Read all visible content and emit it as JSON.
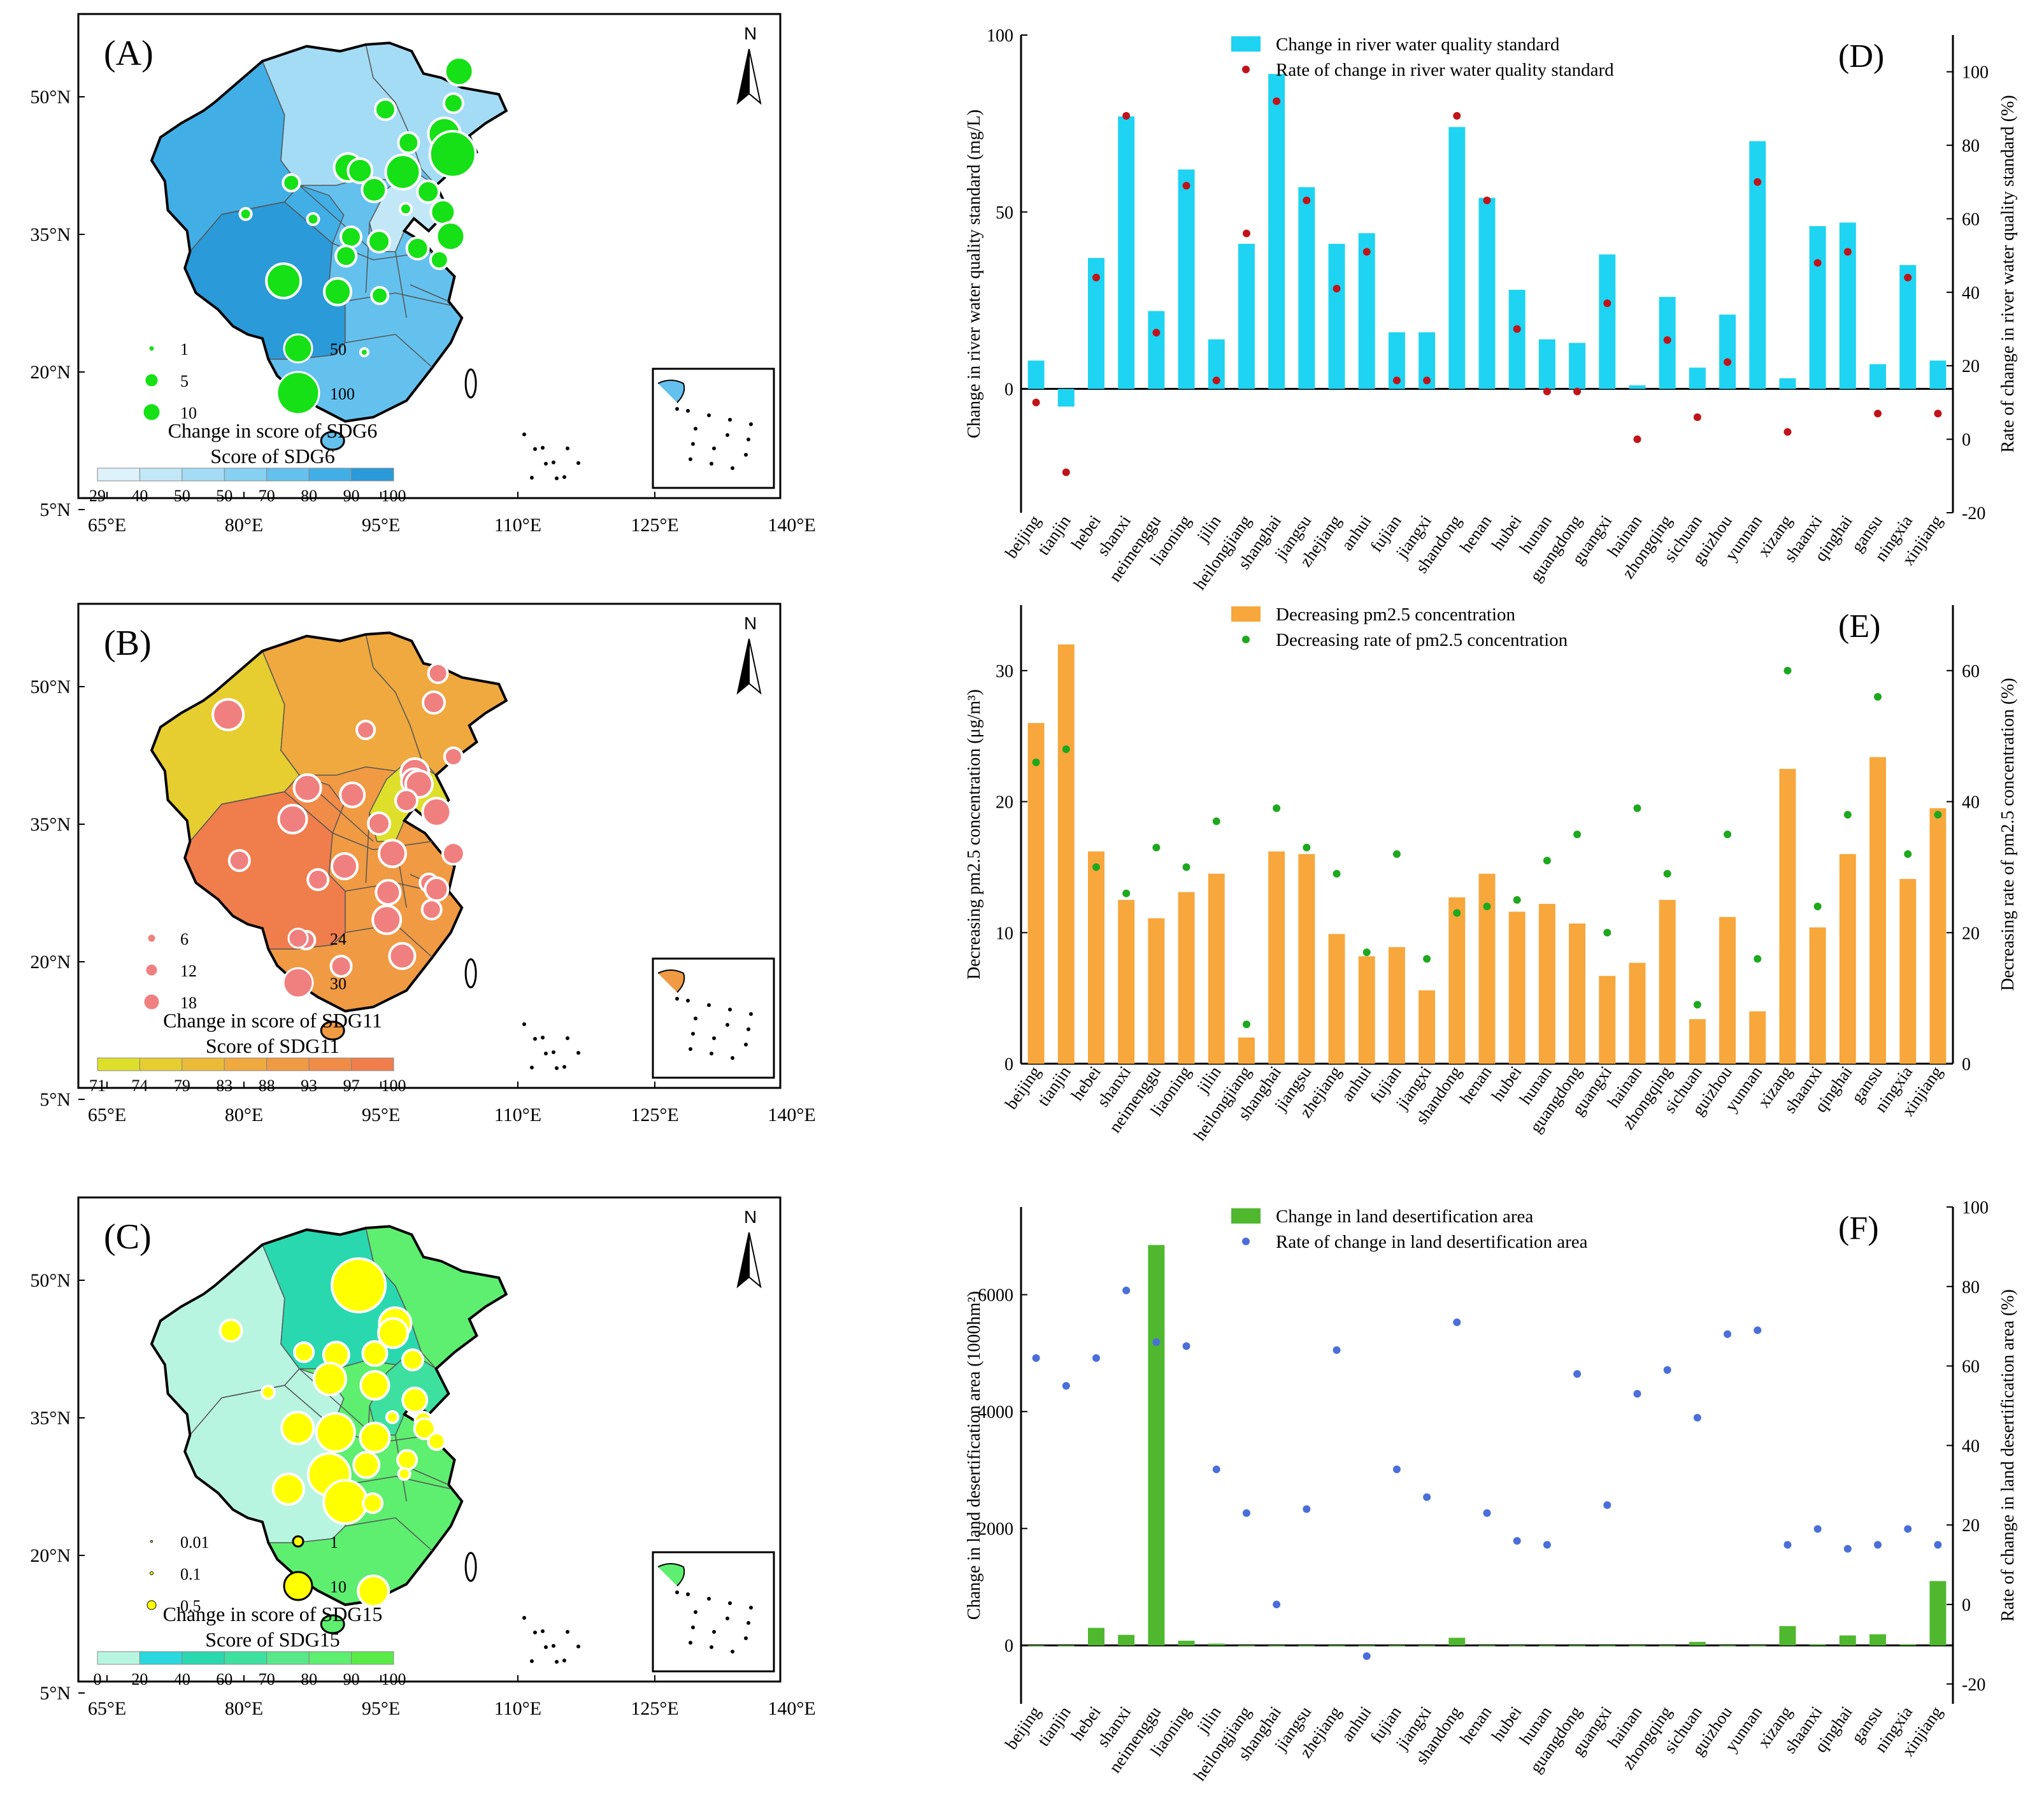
{
  "panel_a": {
    "label": "(A)",
    "north": "N",
    "lat_labels": [
      "50°N",
      "35°N",
      "20°N",
      "5°N"
    ],
    "lon_labels": [
      "65°E",
      "80°E",
      "95°E",
      "110°E",
      "125°E",
      "140°E"
    ],
    "bubble_legend": [
      "1",
      "5",
      "10",
      "50",
      "100"
    ],
    "legend_title": "Change in score of SDG6",
    "colorbar_title": "Score of SDG6",
    "colorbar_labels": [
      "29",
      "40",
      "50",
      "50",
      "70",
      "80",
      "90",
      "100"
    ],
    "colors": [
      "#ddf2fb",
      "#c2e8f8",
      "#a4dcf5",
      "#86d0f2",
      "#64c1ee",
      "#41afe6",
      "#2a9ad8"
    ],
    "bubble_color": "#16e016"
  },
  "panel_b": {
    "label": "(B)",
    "north": "N",
    "lat_labels": [
      "50°N",
      "35°N",
      "20°N",
      "5°N"
    ],
    "lon_labels": [
      "65°E",
      "80°E",
      "95°E",
      "110°E",
      "125°E",
      "140°E"
    ],
    "bubble_legend": [
      "6",
      "12",
      "18",
      "24",
      "30"
    ],
    "legend_title": "Change in score of SDG11",
    "colorbar_title": "Score of SDG11",
    "colorbar_labels": [
      "71",
      "74",
      "79",
      "83",
      "88",
      "93",
      "97",
      "100"
    ],
    "colors": [
      "#dedf2a",
      "#e6cd30",
      "#ebbb38",
      "#efa93f",
      "#f09a44",
      "#f18b48",
      "#f07d4c"
    ],
    "bubble_color": "#f08080"
  },
  "panel_c": {
    "label": "(C)",
    "north": "N",
    "lat_labels": [
      "50°N",
      "35°N",
      "20°N",
      "5°N"
    ],
    "lon_labels": [
      "65°E",
      "80°E",
      "95°E",
      "110°E",
      "125°E",
      "140°E"
    ],
    "bubble_legend": [
      "0.01",
      "0.1",
      "0.5",
      "1",
      "10"
    ],
    "legend_title": "Change in score of SDG15",
    "colorbar_title": "Score of SDG15",
    "colorbar_labels": [
      "0",
      "20",
      "40",
      "60",
      "70",
      "80",
      "90",
      "100"
    ],
    "colors": [
      "#b8f5e0",
      "#2ad8dd",
      "#2ad8b0",
      "#3ee0a0",
      "#58e88a",
      "#5eee70",
      "#5aea48"
    ],
    "bubble_color": "#ffff00"
  },
  "chart_data": [
    {
      "panel": "(D)",
      "type": "bar",
      "categories": [
        "beijing",
        "tianjin",
        "hebei",
        "shanxi",
        "neimenggu",
        "liaoning",
        "jilin",
        "heilongjiang",
        "shanghai",
        "jiangsu",
        "zhejiang",
        "anhui",
        "fujian",
        "jiangxi",
        "shandong",
        "henan",
        "hubei",
        "hunan",
        "guangdong",
        "guangxi",
        "hainan",
        "zhongqing",
        "sichuan",
        "guizhou",
        "yunnan",
        "xizang",
        "shaanxi",
        "qinghai",
        "gansu",
        "ningxia",
        "xinjiang"
      ],
      "series": [
        {
          "name": "Change in river water quality standard",
          "axis": "left",
          "color": "#1fd3f2",
          "values": [
            8,
            -5,
            37,
            77,
            22,
            62,
            14,
            41,
            89,
            57,
            41,
            44,
            16,
            16,
            74,
            54,
            28,
            14,
            13,
            38,
            1,
            26,
            6,
            21,
            70,
            3,
            46,
            47,
            7,
            35,
            8
          ]
        },
        {
          "name": "Rate of change in river water quality standard",
          "axis": "right",
          "color": "#c0141a",
          "values": [
            10,
            -9,
            44,
            88,
            29,
            69,
            16,
            56,
            92,
            65,
            41,
            51,
            16,
            16,
            88,
            65,
            30,
            13,
            13,
            37,
            0,
            27,
            6,
            21,
            70,
            2,
            48,
            51,
            7,
            44,
            7
          ]
        }
      ],
      "ylabel": "Change in river water quality standard (mg/L)",
      "y2label": "Rate of change in river water quality standard (%)",
      "ylim": [
        -35,
        100
      ],
      "y2lim": [
        -20,
        110
      ],
      "yticks": [
        0,
        50,
        100
      ],
      "y2ticks": [
        -20,
        0,
        20,
        40,
        60,
        80,
        100
      ]
    },
    {
      "panel": "(E)",
      "type": "bar",
      "categories": [
        "beijing",
        "tianjin",
        "hebei",
        "shanxi",
        "neimenggu",
        "liaoning",
        "jilin",
        "heilongjiang",
        "shanghai",
        "jiangsu",
        "zhejiang",
        "anhui",
        "fujian",
        "jiangxi",
        "shandong",
        "henan",
        "hubei",
        "hunan",
        "guangdong",
        "guangxi",
        "hainan",
        "zhongqing",
        "sichuan",
        "guizhou",
        "yunnan",
        "xizang",
        "shaanxi",
        "qinghai",
        "gansu",
        "ningxia",
        "xinjiang"
      ],
      "series": [
        {
          "name": "Decreasing pm2.5 concentration",
          "axis": "left",
          "color": "#f7a73c",
          "values": [
            26,
            32,
            16.2,
            12.5,
            11.1,
            13.1,
            14.5,
            2,
            16.2,
            16,
            9.9,
            8.2,
            8.9,
            5.6,
            12.7,
            14.5,
            11.6,
            12.2,
            10.7,
            6.7,
            7.7,
            12.5,
            3.4,
            11.2,
            4,
            22.5,
            10.4,
            16,
            23.4,
            14.1,
            19.5
          ]
        },
        {
          "name": "Decreasing rate of pm2.5 concentration",
          "axis": "right",
          "color": "#1ea81e",
          "values": [
            46,
            48,
            30,
            26,
            33,
            30,
            37,
            6,
            39,
            33,
            29,
            17,
            32,
            16,
            23,
            24,
            25,
            31,
            35,
            20,
            39,
            29,
            9,
            35,
            16,
            60,
            24,
            38,
            56,
            32,
            38
          ]
        }
      ],
      "ylabel": "Decreasing pm2.5 concentration (μg/m³)",
      "y2label": "Decreasing rate of pm2.5 concentration (%)",
      "ylim": [
        0,
        35
      ],
      "y2lim": [
        0,
        70
      ],
      "yticks": [
        0,
        10,
        20,
        30
      ],
      "y2ticks": [
        0,
        20,
        40,
        60
      ]
    },
    {
      "panel": "(F)",
      "type": "bar",
      "categories": [
        "beijing",
        "tianjin",
        "hebei",
        "shanxi",
        "neimenggu",
        "liaoning",
        "jilin",
        "heilongjiang",
        "shanghai",
        "jiangsu",
        "zhejiang",
        "anhui",
        "fujian",
        "jiangxi",
        "shandong",
        "henan",
        "hubei",
        "hunan",
        "guangdong",
        "guangxi",
        "hainan",
        "zhongqing",
        "sichuan",
        "guizhou",
        "yunnan",
        "xizang",
        "shaanxi",
        "qinghai",
        "gansu",
        "ningxia",
        "xinjiang"
      ],
      "series": [
        {
          "name": "Change in land desertification area",
          "axis": "left",
          "color": "#4fb82f",
          "values": [
            0,
            0,
            300,
            180,
            6850,
            80,
            30,
            0,
            0,
            0,
            0,
            0,
            0,
            0,
            130,
            0,
            0,
            0,
            0,
            0,
            0,
            0,
            60,
            0,
            0,
            330,
            20,
            170,
            190,
            20,
            1100
          ]
        },
        {
          "name": "Rate of change in land desertification area",
          "axis": "right",
          "color": "#4a6fd8",
          "values": [
            62,
            55,
            62,
            79,
            66,
            65,
            34,
            23,
            0,
            24,
            64,
            -13,
            34,
            27,
            71,
            23,
            16,
            15,
            58,
            25,
            53,
            59,
            47,
            68,
            69,
            15,
            19,
            14,
            15,
            19,
            15
          ]
        }
      ],
      "ylabel": "Change in land desertification area (1000hm²)",
      "y2label": "Rate of change in land desertification area (%)",
      "ylim": [
        -1000,
        7500
      ],
      "y2lim": [
        -25,
        100
      ],
      "yticks": [
        0,
        2000,
        4000,
        6000
      ],
      "y2ticks": [
        -20,
        0,
        20,
        40,
        60,
        80,
        100
      ]
    }
  ]
}
